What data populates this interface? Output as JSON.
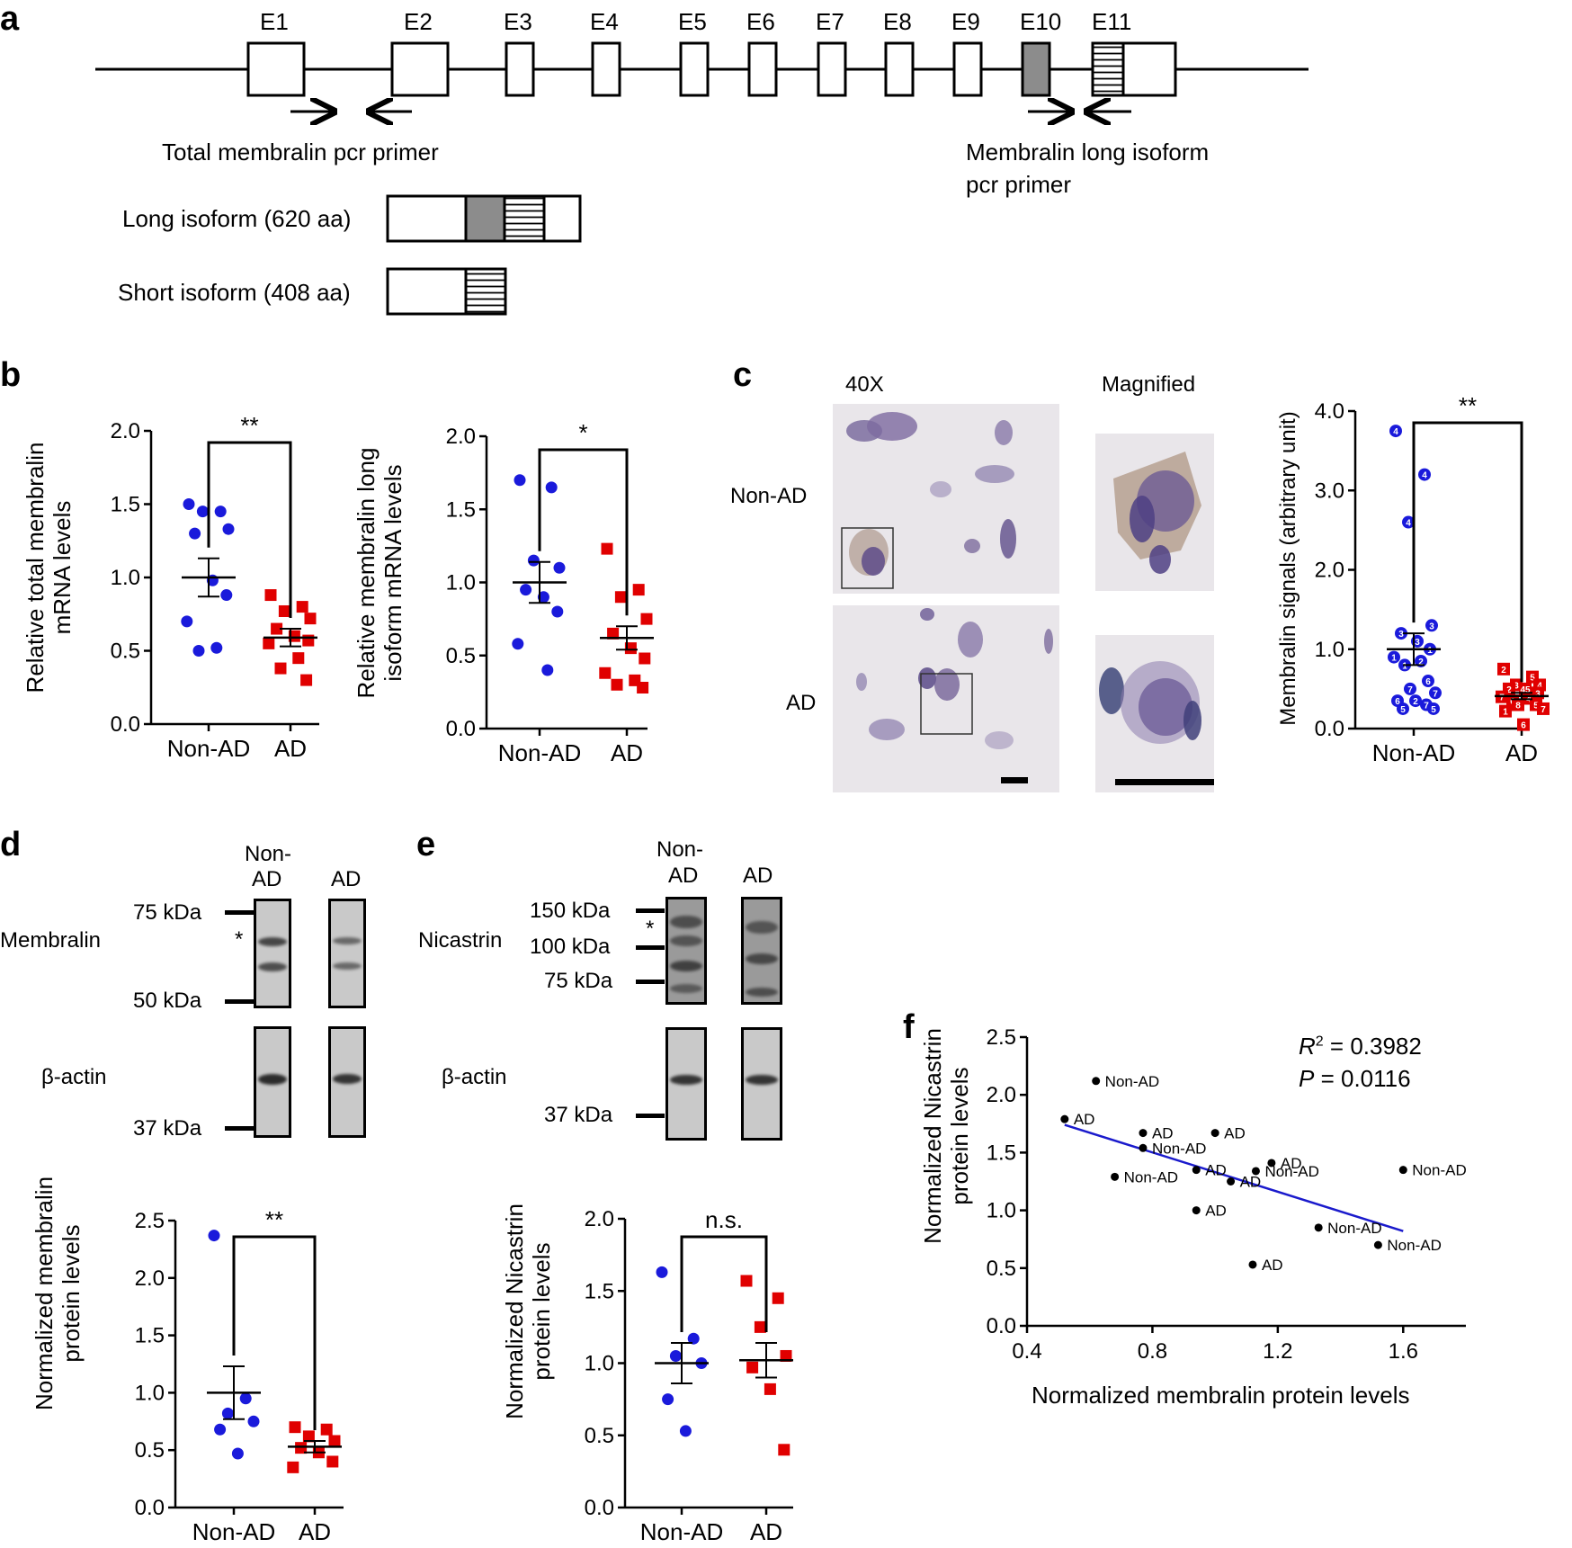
{
  "panel_a": {
    "label": "a",
    "exons": [
      "E1",
      "E2",
      "E3",
      "E4",
      "E5",
      "E6",
      "E7",
      "E8",
      "E9",
      "E10",
      "E11"
    ],
    "total_primer_label": "Total membralin pcr primer",
    "long_primer_label_1": "Membralin long isoform",
    "long_primer_label_2": "pcr primer",
    "long_isoform_label": "Long isoform (620 aa)",
    "short_isoform_label": "Short isoform (408 aa)"
  },
  "panel_b": {
    "label": "b",
    "left_ylabel_1": "Relative total membralin",
    "left_ylabel_2": "mRNA levels",
    "right_ylabel_1": "Relative membralin long",
    "right_ylabel_2": "isoform mRNA levels",
    "left_sig": "**",
    "right_sig": "*"
  },
  "panel_c": {
    "label": "c",
    "col_40x": "40X",
    "col_magnified": "Magnified",
    "row_nonad": "Non-AD",
    "row_ad": "AD",
    "ylabel": "Membralin signals (arbitrary unit)",
    "sig": "**"
  },
  "panel_d": {
    "label": "d",
    "lane_nonad_1": "Non-",
    "lane_nonad_2": "AD",
    "lane_ad": "AD",
    "protein": "Membralin",
    "loading": "β-actin",
    "mw_75": "75 kDa",
    "mw_50": "50 kDa",
    "mw_37": "37 kDa",
    "nonspecific": "*",
    "ylabel_1": "Normalized membralin",
    "ylabel_2": "protein levels",
    "sig": "**"
  },
  "panel_e": {
    "label": "e",
    "lane_nonad_1": "Non-",
    "lane_nonad_2": "AD",
    "lane_ad": "AD",
    "protein": "Nicastrin",
    "loading": "β-actin",
    "mw_150": "150 kDa",
    "mw_100": "100 kDa",
    "mw_75": "75 kDa",
    "mw_37": "37 kDa",
    "nonspecific": "*",
    "ylabel_1": "Normalized Nicastrin",
    "ylabel_2": "protein levels",
    "sig": "n.s."
  },
  "panel_f": {
    "label": "f",
    "ylabel_1": "Normalized Nicastrin",
    "ylabel_2": "protein levels",
    "xlabel": "Normalized membralin protein levels",
    "r2_value": "= 0.3982",
    "p_value": "= 0.0116"
  },
  "chart_data": [
    {
      "id": "b_total",
      "type": "scatter",
      "title": "",
      "xlabel": "",
      "ylabel": "Relative total membralin mRNA levels",
      "categories": [
        "Non-AD",
        "AD"
      ],
      "ylim": [
        0,
        2.0
      ],
      "yticks": [
        "0.0",
        "0.5",
        "1.0",
        "1.5",
        "2.0"
      ],
      "series": [
        {
          "name": "Non-AD",
          "color": "#1a1adb",
          "shape": "circle",
          "mean": 1.0,
          "sem": 0.13,
          "values": [
            1.5,
            1.45,
            1.45,
            1.33,
            1.3,
            0.98,
            0.88,
            0.7,
            0.52,
            0.5
          ]
        },
        {
          "name": "AD",
          "color": "#e00000",
          "shape": "square",
          "mean": 0.59,
          "sem": 0.06,
          "values": [
            0.88,
            0.8,
            0.77,
            0.72,
            0.65,
            0.6,
            0.57,
            0.55,
            0.45,
            0.38,
            0.3
          ]
        }
      ],
      "significance": "**"
    },
    {
      "id": "b_long",
      "type": "scatter",
      "title": "",
      "xlabel": "",
      "ylabel": "Relative membralin long isoform mRNA levels",
      "categories": [
        "Non-AD",
        "AD"
      ],
      "ylim": [
        0,
        2.0
      ],
      "yticks": [
        "0.0",
        "0.5",
        "1.0",
        "1.5",
        "2.0"
      ],
      "series": [
        {
          "name": "Non-AD",
          "color": "#1a1adb",
          "shape": "circle",
          "mean": 1.0,
          "sem": 0.14,
          "values": [
            1.7,
            1.65,
            1.15,
            1.1,
            0.95,
            0.9,
            0.8,
            0.58,
            0.4
          ]
        },
        {
          "name": "AD",
          "color": "#e00000",
          "shape": "square",
          "mean": 0.62,
          "sem": 0.08,
          "values": [
            1.23,
            0.95,
            0.9,
            0.75,
            0.65,
            0.55,
            0.48,
            0.38,
            0.33,
            0.3,
            0.28
          ]
        }
      ],
      "significance": "*"
    },
    {
      "id": "c_signal",
      "type": "scatter",
      "title": "",
      "xlabel": "",
      "ylabel": "Membralin signals (arbitrary unit)",
      "categories": [
        "Non-AD",
        "AD"
      ],
      "ylim": [
        0,
        4.0
      ],
      "yticks": [
        "0.0",
        "1.0",
        "2.0",
        "3.0",
        "4.0"
      ],
      "series": [
        {
          "name": "Non-AD",
          "color": "#1a1adb",
          "shape": "circle",
          "mean": 1.0,
          "sem": 0.2,
          "values": [
            3.75,
            3.2,
            2.6,
            1.3,
            1.2,
            1.1,
            1.0,
            0.9,
            0.85,
            0.8,
            0.6,
            0.5,
            0.45,
            0.35,
            0.35,
            0.3,
            0.25,
            0.25
          ]
        },
        {
          "name": "AD",
          "color": "#e00000",
          "shape": "square",
          "mean": 0.41,
          "sem": 0.04,
          "values": [
            0.75,
            0.65,
            0.55,
            0.55,
            0.5,
            0.5,
            0.45,
            0.4,
            0.38,
            0.35,
            0.3,
            0.3,
            0.25,
            0.22,
            0.05
          ]
        }
      ],
      "point_labels": {
        "Non-AD": [
          "4",
          "4",
          "4",
          "3",
          "3",
          "3",
          "1",
          "1",
          "2",
          "1",
          "6",
          "7",
          "7",
          "6",
          "2",
          "7",
          "5",
          "5"
        ],
        "AD": [
          "2",
          "5",
          "3",
          "4",
          "2",
          "45",
          "3",
          "7",
          "4",
          "6",
          "5",
          "8",
          "7",
          "1",
          "6"
        ]
      },
      "significance": "**"
    },
    {
      "id": "d_membralin",
      "type": "scatter",
      "title": "",
      "xlabel": "",
      "ylabel": "Normalized membralin protein levels",
      "categories": [
        "Non-AD",
        "AD"
      ],
      "ylim": [
        0,
        2.5
      ],
      "yticks": [
        "0.0",
        "0.5",
        "1.0",
        "1.5",
        "2.0",
        "2.5"
      ],
      "series": [
        {
          "name": "Non-AD",
          "color": "#1a1adb",
          "shape": "circle",
          "mean": 1.0,
          "sem": 0.23,
          "values": [
            2.37,
            0.95,
            0.82,
            0.75,
            0.68,
            0.47
          ]
        },
        {
          "name": "AD",
          "color": "#e00000",
          "shape": "square",
          "mean": 0.53,
          "sem": 0.05,
          "values": [
            0.7,
            0.68,
            0.62,
            0.58,
            0.52,
            0.48,
            0.4,
            0.35
          ]
        }
      ],
      "significance": "**"
    },
    {
      "id": "e_nicastrin",
      "type": "scatter",
      "title": "",
      "xlabel": "",
      "ylabel": "Normalized Nicastrin protein levels",
      "categories": [
        "Non-AD",
        "AD"
      ],
      "ylim": [
        0,
        2.0
      ],
      "yticks": [
        "0.0",
        "0.5",
        "1.0",
        "1.5",
        "2.0"
      ],
      "series": [
        {
          "name": "Non-AD",
          "color": "#1a1adb",
          "shape": "circle",
          "mean": 1.0,
          "sem": 0.14,
          "values": [
            1.63,
            1.17,
            1.05,
            1.0,
            0.75,
            0.53
          ]
        },
        {
          "name": "AD",
          "color": "#e00000",
          "shape": "square",
          "mean": 1.02,
          "sem": 0.12,
          "values": [
            1.57,
            1.45,
            1.25,
            1.05,
            0.97,
            0.82,
            0.4
          ]
        }
      ],
      "significance": "n.s."
    },
    {
      "id": "f_correlation",
      "type": "scatter",
      "title": "",
      "xlabel": "Normalized membralin protein levels",
      "ylabel": "Normalized Nicastrin protein levels",
      "xlim": [
        0.4,
        1.8
      ],
      "ylim": [
        0,
        2.5
      ],
      "xticks": [
        "0.4",
        "0.8",
        "1.2",
        "1.6"
      ],
      "yticks": [
        "0.0",
        "0.5",
        "1.0",
        "1.5",
        "2.0",
        "2.5"
      ],
      "points": [
        {
          "x": 0.62,
          "y": 2.12,
          "label": "Non-AD"
        },
        {
          "x": 0.52,
          "y": 1.79,
          "label": "AD"
        },
        {
          "x": 0.77,
          "y": 1.67,
          "label": "AD"
        },
        {
          "x": 0.77,
          "y": 1.54,
          "label": "Non-AD"
        },
        {
          "x": 1.0,
          "y": 1.67,
          "label": "AD"
        },
        {
          "x": 0.94,
          "y": 1.35,
          "label": "AD"
        },
        {
          "x": 1.18,
          "y": 1.41,
          "label": "AD"
        },
        {
          "x": 1.13,
          "y": 1.34,
          "label": "Non-AD"
        },
        {
          "x": 0.68,
          "y": 1.29,
          "label": "Non-AD"
        },
        {
          "x": 1.05,
          "y": 1.25,
          "label": "AD"
        },
        {
          "x": 1.6,
          "y": 1.35,
          "label": "Non-AD"
        },
        {
          "x": 0.94,
          "y": 1.0,
          "label": "AD"
        },
        {
          "x": 1.33,
          "y": 0.85,
          "label": "Non-AD"
        },
        {
          "x": 1.52,
          "y": 0.7,
          "label": "Non-AD"
        },
        {
          "x": 1.12,
          "y": 0.53,
          "label": "AD"
        }
      ],
      "regression": {
        "x": [
          0.52,
          1.6
        ],
        "y": [
          1.74,
          0.82
        ]
      },
      "annotations": [
        "R2 = 0.3982",
        "P = 0.0116"
      ]
    }
  ]
}
